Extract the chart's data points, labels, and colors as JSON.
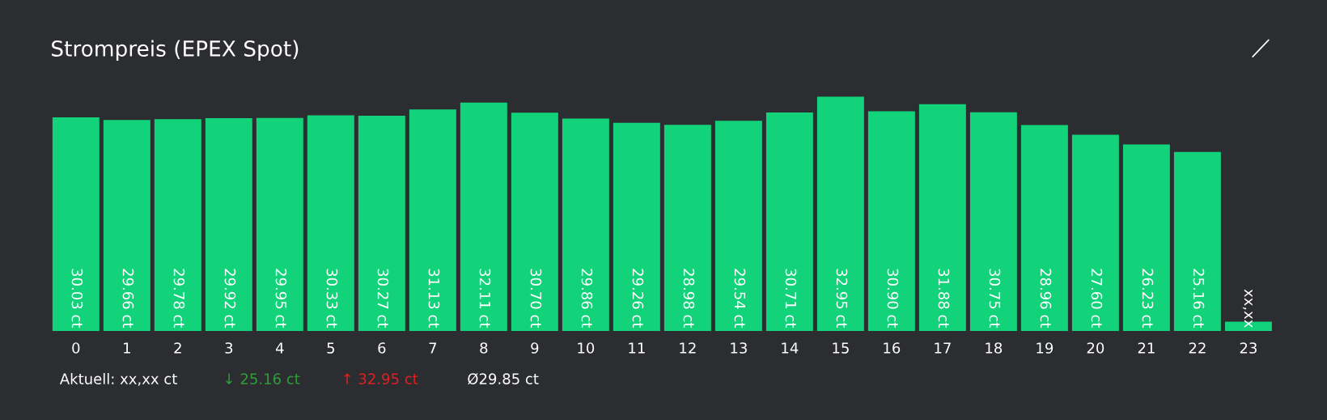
{
  "chart_data": {
    "type": "bar",
    "title": "Strompreis (EPEX Spot)",
    "categories": [
      "0",
      "1",
      "2",
      "3",
      "4",
      "5",
      "6",
      "7",
      "8",
      "9",
      "10",
      "11",
      "12",
      "13",
      "14",
      "15",
      "16",
      "17",
      "18",
      "19",
      "20",
      "21",
      "22",
      "23"
    ],
    "values": [
      30.03,
      29.66,
      29.78,
      29.92,
      29.95,
      30.33,
      30.27,
      31.13,
      32.11,
      30.7,
      29.86,
      29.26,
      28.98,
      29.54,
      30.71,
      32.95,
      30.9,
      31.88,
      30.75,
      28.96,
      27.6,
      26.23,
      25.16,
      1.3
    ],
    "value_labels": [
      "30.03 ct",
      "29.66 ct",
      "29.78 ct",
      "29.92 ct",
      "29.95 ct",
      "30.33 ct",
      "30.27 ct",
      "31.13 ct",
      "32.11 ct",
      "30.70 ct",
      "29.86 ct",
      "29.26 ct",
      "28.98 ct",
      "29.54 ct",
      "30.71 ct",
      "32.95 ct",
      "30.90 ct",
      "31.88 ct",
      "30.75 ct",
      "28.96 ct",
      "27.60 ct",
      "26.23 ct",
      "25.16 ct",
      "xx,xx"
    ],
    "color": "#12d27a",
    "grid": false,
    "legend": false,
    "annotations": [
      "Aktuell: xx,xx ct",
      "↓ 25.16 ct",
      "↑ 32.95 ct",
      "Ø29.85 ct"
    ]
  }
}
